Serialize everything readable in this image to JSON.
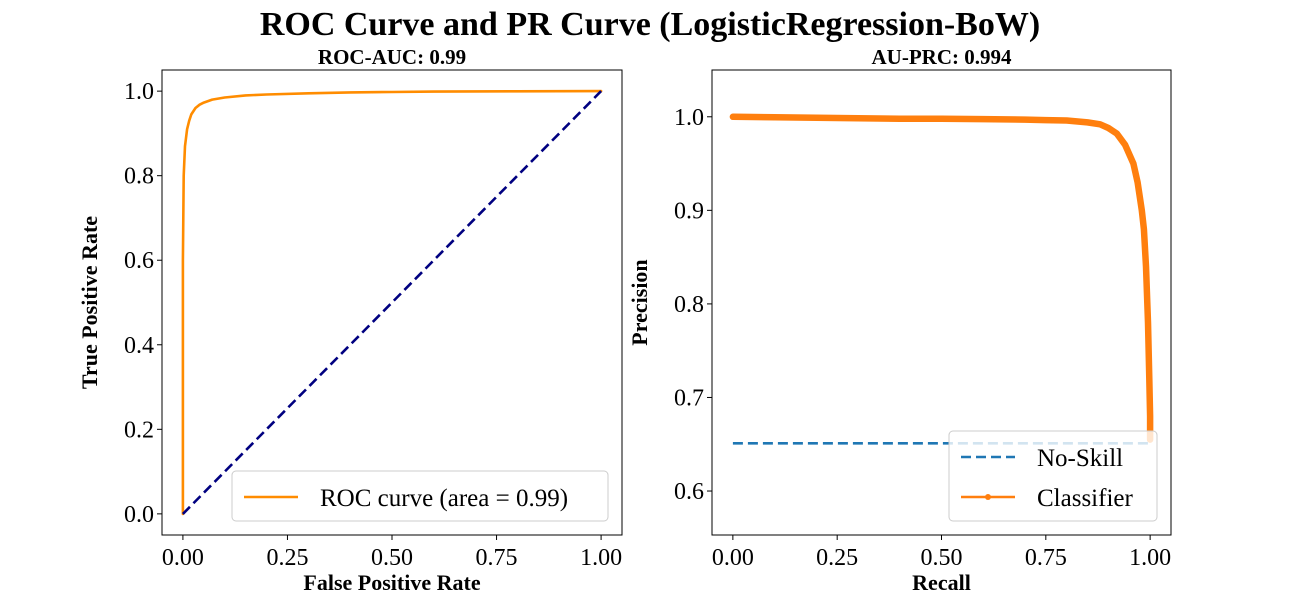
{
  "figure": {
    "title": "ROC Curve and PR Curve (LogisticRegression-BoW)"
  },
  "chart_data": [
    {
      "type": "line",
      "title": "ROC-AUC: 0.99",
      "xlabel": "False Positive Rate",
      "ylabel": "True Positive Rate",
      "xlim": [
        -0.05,
        1.05
      ],
      "ylim": [
        -0.05,
        1.05
      ],
      "xticks": [
        "0.00",
        "0.25",
        "0.50",
        "0.75",
        "1.00"
      ],
      "yticks": [
        "0.0",
        "0.2",
        "0.4",
        "0.6",
        "0.8",
        "1.0"
      ],
      "grid": false,
      "legend_position": "lower-right",
      "series": [
        {
          "name": "ROC curve (area = 0.99)",
          "color": "#ff8c00",
          "style": "solid",
          "x": [
            0.0,
            0.0,
            0.002,
            0.005,
            0.01,
            0.015,
            0.02,
            0.03,
            0.04,
            0.05,
            0.07,
            0.1,
            0.15,
            0.2,
            0.3,
            0.4,
            0.5,
            0.6,
            0.8,
            1.0
          ],
          "y": [
            0.0,
            0.6,
            0.8,
            0.87,
            0.91,
            0.93,
            0.945,
            0.96,
            0.968,
            0.973,
            0.98,
            0.985,
            0.99,
            0.992,
            0.995,
            0.997,
            0.998,
            0.999,
            0.9995,
            1.0
          ]
        },
        {
          "name": "",
          "color": "#000080",
          "style": "dashed",
          "x": [
            0,
            1
          ],
          "y": [
            0,
            1
          ]
        }
      ]
    },
    {
      "type": "line",
      "title": "AU-PRC: 0.994",
      "xlabel": "Recall",
      "ylabel": "Precision",
      "xlim": [
        -0.05,
        1.05
      ],
      "ylim": [
        0.553,
        1.05
      ],
      "xticks": [
        "0.00",
        "0.25",
        "0.50",
        "0.75",
        "1.00"
      ],
      "yticks": [
        "0.6",
        "0.7",
        "0.8",
        "0.9",
        "1.0"
      ],
      "grid": false,
      "legend_position": "lower-right",
      "series": [
        {
          "name": "No-Skill",
          "color": "#1f77b4",
          "style": "dashed",
          "x": [
            0,
            1
          ],
          "y": [
            0.651,
            0.651
          ]
        },
        {
          "name": "Classifier",
          "color": "#ff7f0e",
          "style": "solid-marker",
          "x": [
            0.0,
            0.1,
            0.2,
            0.3,
            0.4,
            0.5,
            0.6,
            0.7,
            0.75,
            0.8,
            0.85,
            0.88,
            0.9,
            0.92,
            0.94,
            0.96,
            0.97,
            0.98,
            0.985,
            0.99,
            0.995,
            0.998,
            1.0,
            1.0
          ],
          "y": [
            1.0,
            0.9995,
            0.999,
            0.9985,
            0.998,
            0.9978,
            0.9975,
            0.997,
            0.9965,
            0.996,
            0.994,
            0.992,
            0.988,
            0.982,
            0.97,
            0.95,
            0.93,
            0.9,
            0.88,
            0.84,
            0.78,
            0.72,
            0.68,
            0.655
          ]
        }
      ]
    }
  ]
}
